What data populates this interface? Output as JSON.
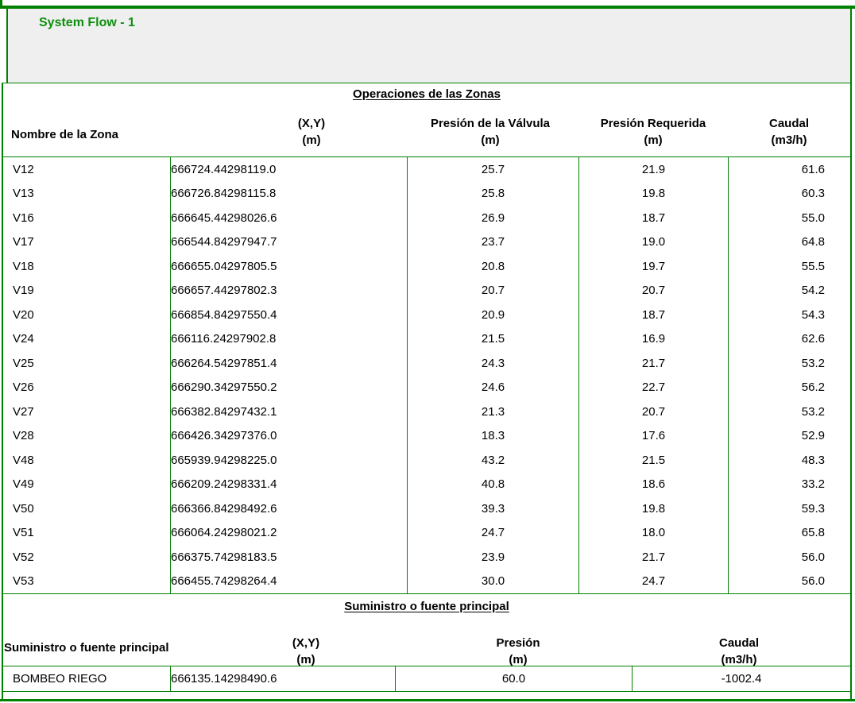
{
  "title": "System Flow - 1",
  "colors": {
    "border_green": "#008000",
    "title_green": "#0f8f0f",
    "header_bg": "#efefef",
    "text": "#000000"
  },
  "zones_table": {
    "section_title": "Operaciones de las Zonas",
    "headers": {
      "name": "Nombre de la Zona",
      "xy1": "(X,Y)",
      "xy2": "(m)",
      "valve1": "Presión de la Válvula",
      "valve2": "(m)",
      "req1": "Presión Requerida",
      "req2": "(m)",
      "flow1": "Caudal",
      "flow2": "(m3/h)"
    },
    "rows": [
      {
        "name": "V12",
        "x": "666724.4",
        "y": "4298119.0",
        "valve": "25.7",
        "required": "21.9",
        "flow": "61.6"
      },
      {
        "name": "V13",
        "x": "666726.8",
        "y": "4298115.8",
        "valve": "25.8",
        "required": "19.8",
        "flow": "60.3"
      },
      {
        "name": "V16",
        "x": "666645.4",
        "y": "4298026.6",
        "valve": "26.9",
        "required": "18.7",
        "flow": "55.0"
      },
      {
        "name": "V17",
        "x": "666544.8",
        "y": "4297947.7",
        "valve": "23.7",
        "required": "19.0",
        "flow": "64.8"
      },
      {
        "name": "V18",
        "x": "666655.0",
        "y": "4297805.5",
        "valve": "20.8",
        "required": "19.7",
        "flow": "55.5"
      },
      {
        "name": "V19",
        "x": "666657.4",
        "y": "4297802.3",
        "valve": "20.7",
        "required": "20.7",
        "flow": "54.2"
      },
      {
        "name": "V20",
        "x": "666854.8",
        "y": "4297550.4",
        "valve": "20.9",
        "required": "18.7",
        "flow": "54.3"
      },
      {
        "name": "V24",
        "x": "666116.2",
        "y": "4297902.8",
        "valve": "21.5",
        "required": "16.9",
        "flow": "62.6"
      },
      {
        "name": "V25",
        "x": "666264.5",
        "y": "4297851.4",
        "valve": "24.3",
        "required": "21.7",
        "flow": "53.2"
      },
      {
        "name": "V26",
        "x": "666290.3",
        "y": "4297550.2",
        "valve": "24.6",
        "required": "22.7",
        "flow": "56.2"
      },
      {
        "name": "V27",
        "x": "666382.8",
        "y": "4297432.1",
        "valve": "21.3",
        "required": "20.7",
        "flow": "53.2"
      },
      {
        "name": "V28",
        "x": "666426.3",
        "y": "4297376.0",
        "valve": "18.3",
        "required": "17.6",
        "flow": "52.9"
      },
      {
        "name": "V48",
        "x": "665939.9",
        "y": "4298225.0",
        "valve": "43.2",
        "required": "21.5",
        "flow": "48.3"
      },
      {
        "name": "V49",
        "x": "666209.2",
        "y": "4298331.4",
        "valve": "40.8",
        "required": "18.6",
        "flow": "33.2"
      },
      {
        "name": "V50",
        "x": "666366.8",
        "y": "4298492.6",
        "valve": "39.3",
        "required": "19.8",
        "flow": "59.3"
      },
      {
        "name": "V51",
        "x": "666064.2",
        "y": "4298021.2",
        "valve": "24.7",
        "required": "18.0",
        "flow": "65.8"
      },
      {
        "name": "V52",
        "x": "666375.7",
        "y": "4298183.5",
        "valve": "23.9",
        "required": "21.7",
        "flow": "56.0"
      },
      {
        "name": "V53",
        "x": "666455.7",
        "y": "4298264.4",
        "valve": "30.0",
        "required": "24.7",
        "flow": "56.0"
      }
    ]
  },
  "supply_table": {
    "section_title": "Suministro o fuente principal",
    "headers": {
      "name": "Suministro o fuente principal",
      "xy1": "(X,Y)",
      "xy2": "(m)",
      "pressure1": "Presión",
      "pressure2": "(m)",
      "flow1": "Caudal",
      "flow2": "(m3/h)"
    },
    "row": {
      "name": "BOMBEO RIEGO",
      "x": "666135.1",
      "y": "4298490.6",
      "pressure": "60.0",
      "flow": "-1002.4"
    }
  }
}
